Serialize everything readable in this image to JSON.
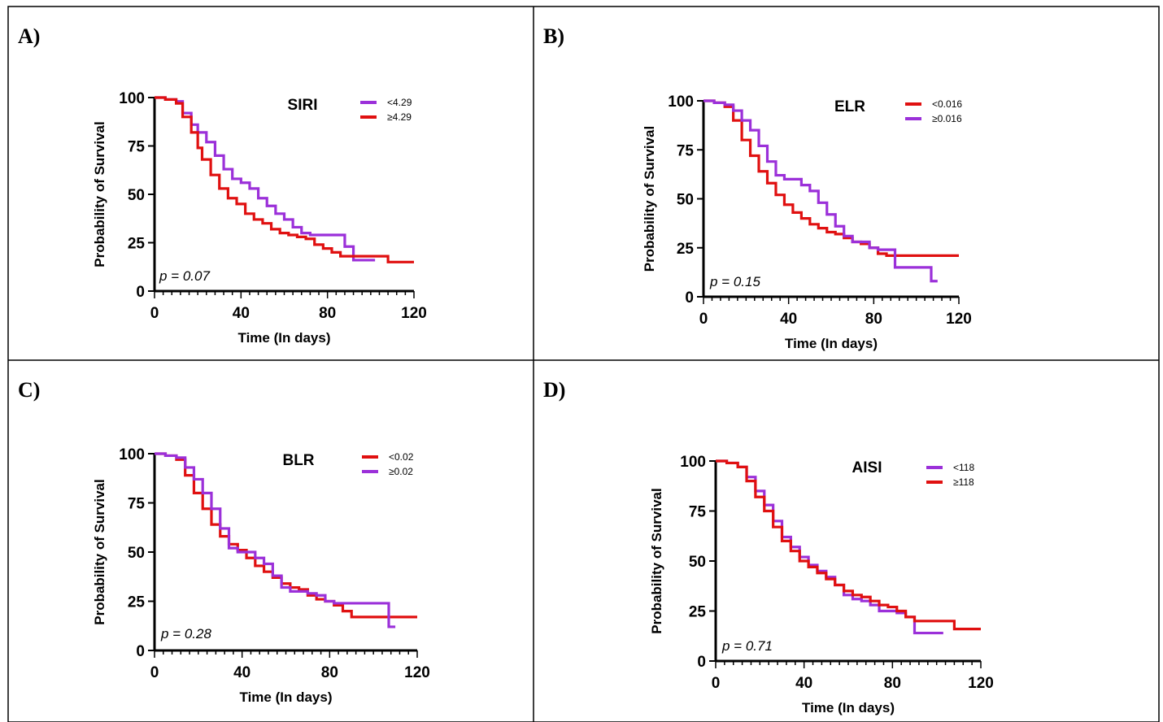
{
  "colors": {
    "purple": "#9b30d9",
    "red": "#e01010",
    "axis": "#000000"
  },
  "panels": [
    {
      "letter": "A)",
      "chart_data": {
        "type": "line",
        "title": "SIRI",
        "xlabel": "Time (In days)",
        "ylabel": "Probability of Survival",
        "xlim": [
          0,
          120
        ],
        "ylim": [
          0,
          100
        ],
        "xticks": [
          0,
          40,
          80,
          120
        ],
        "yticks": [
          0,
          25,
          50,
          75,
          100
        ],
        "pvalue": "p = 0.07",
        "legend_position": "top-right",
        "series": [
          {
            "name": "<4.29",
            "color": "purple",
            "x": [
              0,
              5,
              10,
              13,
              17,
              20,
              24,
              28,
              32,
              36,
              40,
              44,
              48,
              52,
              56,
              60,
              64,
              68,
              72,
              76,
              80,
              84,
              88,
              92,
              96,
              102
            ],
            "y": [
              100,
              99,
              98,
              92,
              86,
              82,
              77,
              70,
              63,
              58,
              56,
              53,
              48,
              44,
              40,
              37,
              33,
              30,
              29,
              29,
              29,
              29,
              23,
              16,
              16,
              16
            ]
          },
          {
            "name": "≥4.29",
            "color": "red",
            "x": [
              0,
              5,
              10,
              13,
              17,
              20,
              22,
              26,
              30,
              34,
              38,
              42,
              46,
              50,
              54,
              58,
              62,
              66,
              70,
              74,
              78,
              82,
              86,
              90,
              94,
              98,
              102,
              108,
              120
            ],
            "y": [
              100,
              99,
              97,
              90,
              82,
              74,
              68,
              60,
              53,
              48,
              45,
              40,
              37,
              35,
              32,
              30,
              29,
              28,
              27,
              24,
              22,
              20,
              18,
              18,
              18,
              18,
              18,
              15,
              15
            ]
          }
        ]
      }
    },
    {
      "letter": "B)",
      "chart_data": {
        "type": "line",
        "title": "ELR",
        "xlabel": "Time (In days)",
        "ylabel": "Probability of Survival",
        "xlim": [
          0,
          120
        ],
        "ylim": [
          0,
          100
        ],
        "xticks": [
          0,
          40,
          80,
          120
        ],
        "yticks": [
          0,
          25,
          50,
          75,
          100
        ],
        "pvalue": "p = 0.15",
        "legend_position": "top-right",
        "series": [
          {
            "name": "<0.016",
            "color": "red",
            "x": [
              0,
              5,
              10,
              14,
              18,
              22,
              26,
              30,
              34,
              38,
              42,
              46,
              50,
              54,
              58,
              62,
              66,
              70,
              74,
              78,
              82,
              86,
              90,
              95,
              100,
              110,
              120
            ],
            "y": [
              100,
              99,
              97,
              90,
              80,
              72,
              64,
              58,
              52,
              47,
              43,
              40,
              37,
              35,
              33,
              32,
              30,
              28,
              27,
              25,
              22,
              21,
              21,
              21,
              21,
              21,
              21
            ]
          },
          {
            "name": "≥0.016",
            "color": "purple",
            "x": [
              0,
              5,
              10,
              14,
              18,
              22,
              26,
              30,
              34,
              38,
              42,
              46,
              50,
              54,
              58,
              62,
              66,
              70,
              74,
              78,
              82,
              86,
              90,
              95,
              100,
              107,
              110
            ],
            "y": [
              100,
              99,
              98,
              95,
              90,
              85,
              77,
              69,
              62,
              60,
              60,
              57,
              54,
              48,
              42,
              36,
              31,
              28,
              28,
              25,
              24,
              24,
              15,
              15,
              15,
              8,
              8
            ]
          }
        ]
      }
    },
    {
      "letter": "C)",
      "chart_data": {
        "type": "line",
        "title": "BLR",
        "xlabel": "Time (In days)",
        "ylabel": "Probability of Survival",
        "xlim": [
          0,
          120
        ],
        "ylim": [
          0,
          100
        ],
        "xticks": [
          0,
          40,
          80,
          120
        ],
        "yticks": [
          0,
          25,
          50,
          75,
          100
        ],
        "pvalue": "p = 0.28",
        "legend_position": "top-right",
        "series": [
          {
            "name": "<0.02",
            "color": "red",
            "x": [
              0,
              5,
              10,
              14,
              18,
              22,
              26,
              30,
              34,
              38,
              42,
              46,
              50,
              54,
              58,
              62,
              66,
              70,
              74,
              78,
              82,
              86,
              90,
              95,
              100,
              105,
              110,
              120
            ],
            "y": [
              100,
              99,
              97,
              89,
              80,
              72,
              64,
              58,
              54,
              51,
              47,
              43,
              40,
              37,
              34,
              32,
              31,
              28,
              26,
              25,
              23,
              20,
              17,
              17,
              17,
              17,
              17,
              17
            ]
          },
          {
            "name": "≥0.02",
            "color": "purple",
            "x": [
              0,
              5,
              10,
              14,
              18,
              22,
              26,
              30,
              34,
              38,
              42,
              46,
              50,
              54,
              58,
              62,
              66,
              70,
              74,
              78,
              82,
              86,
              90,
              95,
              100,
              107,
              110
            ],
            "y": [
              100,
              99,
              98,
              93,
              87,
              80,
              72,
              62,
              52,
              50,
              50,
              47,
              44,
              38,
              32,
              30,
              30,
              29,
              28,
              25,
              24,
              24,
              24,
              24,
              24,
              12,
              12
            ]
          }
        ]
      }
    },
    {
      "letter": "D)",
      "chart_data": {
        "type": "line",
        "title": "AISI",
        "xlabel": "Time (In days)",
        "ylabel": "Probability of Survival",
        "xlim": [
          0,
          120
        ],
        "ylim": [
          0,
          100
        ],
        "xticks": [
          0,
          40,
          80,
          120
        ],
        "yticks": [
          0,
          25,
          50,
          75,
          100
        ],
        "pvalue": "p = 0.71",
        "legend_position": "top-right",
        "series": [
          {
            "name": "<118",
            "color": "purple",
            "x": [
              0,
              5,
              10,
              14,
              18,
              22,
              26,
              30,
              34,
              38,
              42,
              46,
              50,
              54,
              58,
              62,
              66,
              70,
              74,
              78,
              82,
              86,
              90,
              95,
              100,
              103
            ],
            "y": [
              100,
              99,
              97,
              92,
              85,
              78,
              70,
              62,
              57,
              52,
              48,
              45,
              42,
              38,
              33,
              31,
              30,
              28,
              25,
              25,
              24,
              22,
              14,
              14,
              14,
              14
            ]
          },
          {
            "name": "≥118",
            "color": "red",
            "x": [
              0,
              5,
              10,
              14,
              18,
              22,
              26,
              30,
              34,
              38,
              42,
              46,
              50,
              54,
              58,
              62,
              66,
              70,
              74,
              78,
              82,
              86,
              90,
              95,
              100,
              108,
              120
            ],
            "y": [
              100,
              99,
              97,
              90,
              82,
              75,
              67,
              60,
              55,
              50,
              47,
              44,
              41,
              38,
              35,
              33,
              32,
              30,
              28,
              27,
              25,
              22,
              20,
              20,
              20,
              16,
              16
            ]
          }
        ]
      }
    }
  ]
}
